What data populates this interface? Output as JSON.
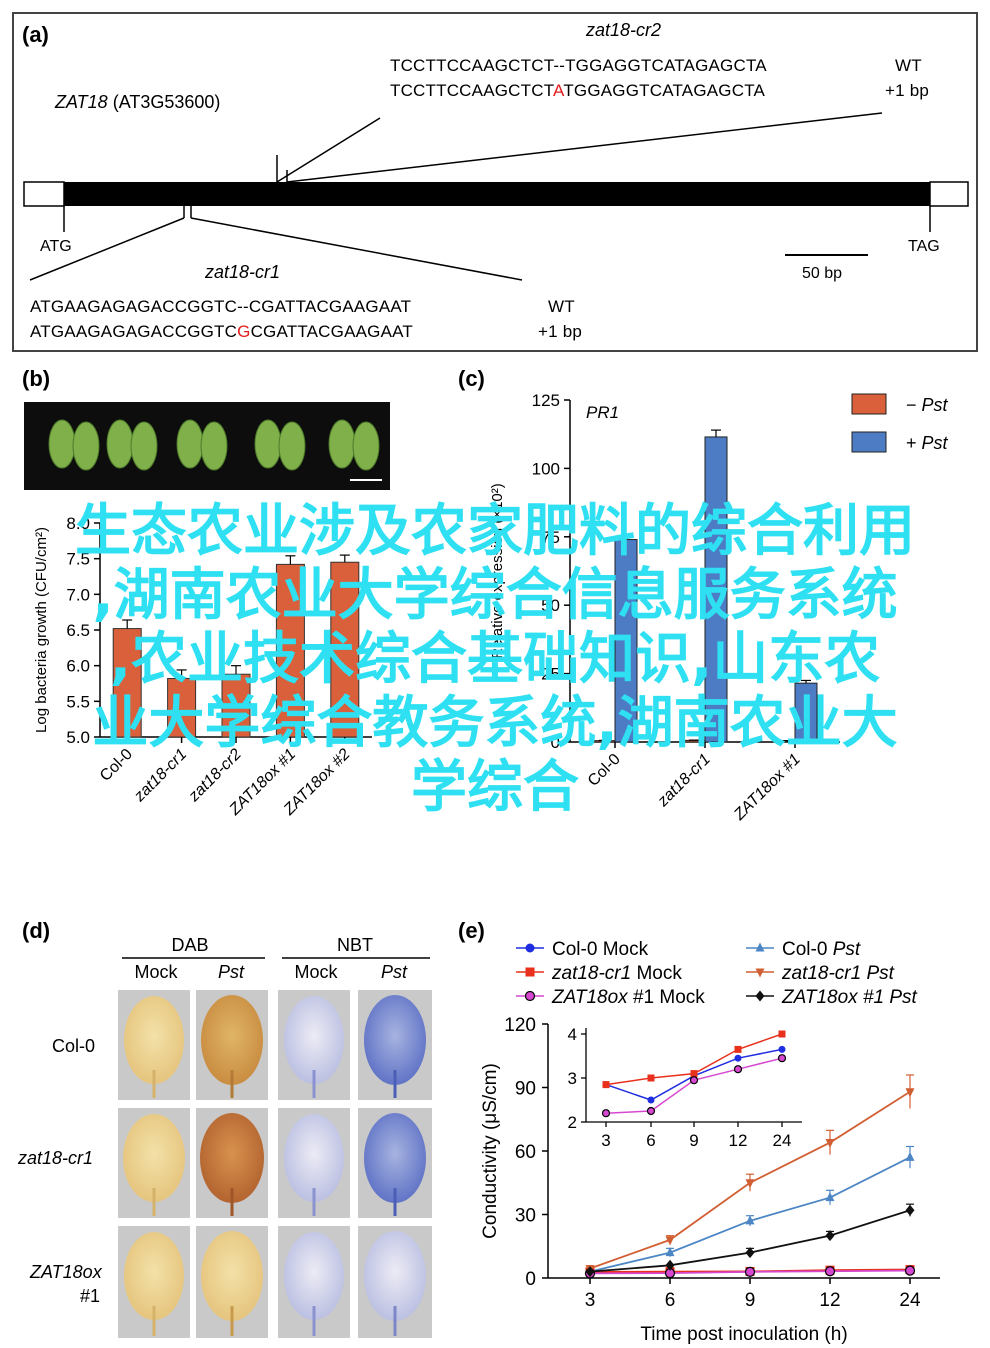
{
  "panel_a": {
    "label": "(a)",
    "gene": "ZAT18",
    "locus": "(AT3G53600)",
    "cr2_title": "zat18-cr2",
    "cr2_wt_left": "TCCTTCCAAGCTCT--TGGAGGTCATAGAGCTA",
    "cr2_mut_pre": "TCCTTCCAAGCTCT",
    "cr2_mut_ins": "A",
    "cr2_mut_post": "TGGAGGTCATAGAGCTA",
    "cr2_wt_tag": "WT",
    "cr2_mut_tag": "+1 bp",
    "atg": "ATG",
    "tag": "TAG",
    "scale": "50 bp",
    "cr1_title": "zat18-cr1",
    "cr1_wt": "ATGAAGAGAGACCGGTC--CGATTACGAAGAAT",
    "cr1_mut_pre": "ATGAAGAGAGACCGGTC",
    "cr1_mut_ins": "G",
    "cr1_mut_post": "CGATTACGAAGAAT",
    "cr1_wt_tag": "WT",
    "cr1_mut_tag": "+1 bp"
  },
  "panel_b": {
    "label": "(b)",
    "ylabel": "Log bacteria growth (CFU/cm²)",
    "chart_data": {
      "type": "bar",
      "categories": [
        "Col-0",
        "zat18-cr1",
        "zat18-cr2",
        "ZAT18ox #1",
        "ZAT18ox #2"
      ],
      "values": [
        6.52,
        5.82,
        5.88,
        7.42,
        7.45
      ],
      "errors": [
        0.12,
        0.12,
        0.12,
        0.12,
        0.1
      ],
      "ylim": [
        5.0,
        8.0
      ],
      "yticks": [
        "5.0",
        "5.5",
        "6.0",
        "6.5",
        "7.0",
        "7.5",
        "8.0"
      ],
      "color": "#d9603b"
    }
  },
  "panel_c": {
    "label": "(c)",
    "title": "PR1",
    "ylabel": "Relative expression (×10²)",
    "chart_data": {
      "type": "bar",
      "categories": [
        "Col-0",
        "zat18-cr1",
        "ZAT18ox #1"
      ],
      "series": [
        {
          "name": "−Pst",
          "color": "#d9603b",
          "values": [
            0.5,
            0.6,
            0.4
          ]
        },
        {
          "name": "+Pst",
          "color": "#4d7cc4",
          "values": [
            74,
            111.5,
            21.5
          ]
        }
      ],
      "errors": [
        [
          0.1,
          0.1,
          0.1
        ],
        [
          2,
          2.5,
          1
        ]
      ],
      "ylim": [
        0,
        125
      ],
      "yticks": [
        "0",
        "25",
        "50",
        "75",
        "100",
        "125"
      ]
    },
    "legend": [
      {
        "sign": "−",
        "name": "Pst"
      },
      {
        "sign": "+",
        "name": "Pst"
      }
    ]
  },
  "panel_d": {
    "label": "(d)",
    "group_dab": "DAB",
    "group_nbt": "NBT",
    "col_mock": "Mock",
    "col_pst": "Pst",
    "rows": [
      {
        "line1": "Col-0",
        "line2": ""
      },
      {
        "line1": "zat18-cr1",
        "line2": ""
      },
      {
        "line1": "ZAT18ox",
        "line2": "#1"
      }
    ]
  },
  "panel_e": {
    "label": "(e)",
    "legend": [
      {
        "geno": "Col-0",
        "treat": "Mock",
        "geno_italic": false,
        "treat_italic": false,
        "color": "#1f2ee0",
        "marker": "circle"
      },
      {
        "geno": "Col-0",
        "treat": "Pst",
        "geno_italic": false,
        "treat_italic": true,
        "color": "#4d86c4",
        "marker": "triangle-up"
      },
      {
        "geno": "zat18-cr1",
        "treat": "Mock",
        "geno_italic": true,
        "treat_italic": false,
        "color": "#e8301c",
        "marker": "square"
      },
      {
        "geno": "zat18-cr1",
        "treat": "Pst",
        "geno_italic": true,
        "treat_italic": true,
        "color": "#d25f33",
        "marker": "triangle-down"
      },
      {
        "geno": "ZAT18ox",
        "treat": "#1 Mock",
        "geno_italic": true,
        "treat_italic": false,
        "color": "#d648d0",
        "marker": "circle-outline"
      },
      {
        "geno": "ZAT18ox",
        "treat": "#1 Pst",
        "geno_italic": true,
        "treat_italic": true,
        "color": "#111111",
        "marker": "diamond"
      }
    ],
    "xlabel": "Time post inoculation (h)",
    "ylabel": "Conductivity (μS/cm)",
    "chart_data": {
      "type": "line",
      "x": [
        "3",
        "6",
        "9",
        "12",
        "24"
      ],
      "ylim": [
        0,
        120
      ],
      "yticks": [
        "0",
        "30",
        "60",
        "90",
        "120"
      ],
      "series": [
        {
          "name": "Col-0 Mock",
          "values": [
            2.8,
            2.5,
            3,
            3.5,
            3.7
          ]
        },
        {
          "name": "Col-0 Pst",
          "values": [
            3,
            12,
            27,
            38,
            57
          ]
        },
        {
          "name": "zat18-cr1 Mock",
          "values": [
            2.9,
            3,
            3.1,
            3.7,
            4
          ]
        },
        {
          "name": "zat18-cr1 Pst",
          "values": [
            4.5,
            18,
            45,
            64,
            88
          ]
        },
        {
          "name": "ZAT18ox #1 Mock",
          "values": [
            2.2,
            2.3,
            2.9,
            3.2,
            3.5
          ]
        },
        {
          "name": "ZAT18ox #1 Pst",
          "values": [
            3,
            6,
            12,
            20,
            32
          ]
        }
      ],
      "inset": {
        "ylim": [
          2,
          4
        ],
        "yticks": [
          "2",
          "3",
          "4"
        ],
        "series": [
          {
            "name": "Col-0 Mock",
            "values": [
              2.85,
              2.5,
              3.05,
              3.45,
              3.65
            ]
          },
          {
            "name": "zat18-cr1 Mock",
            "values": [
              2.85,
              3,
              3.1,
              3.65,
              4
            ]
          },
          {
            "name": "ZAT18ox #1 Mock",
            "values": [
              2.2,
              2.25,
              2.95,
              3.2,
              3.45
            ]
          }
        ]
      }
    }
  },
  "overlay": {
    "line1": "生态农业涉及农家肥料的综合利用",
    "line2": ",湖南农业大学综合信息服务系统",
    "line3": ",农业技术综合基础知识,山东农",
    "line4": "业大学综合教务系统,湖南农业大",
    "line5": "学综合"
  }
}
